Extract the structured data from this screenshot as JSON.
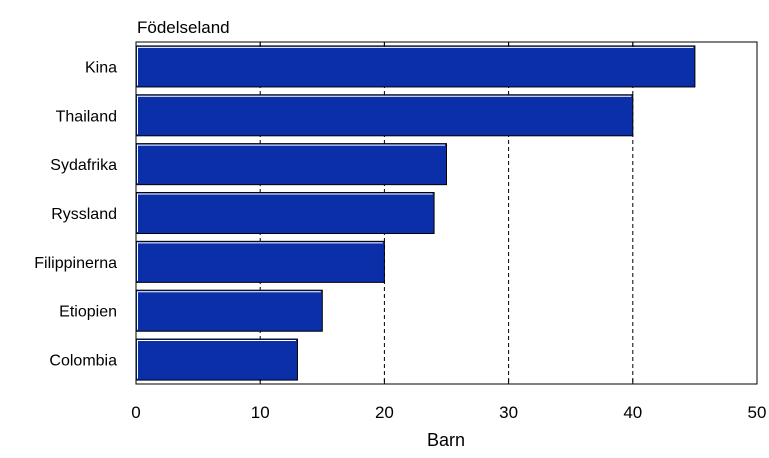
{
  "chart_data": {
    "type": "bar",
    "orientation": "horizontal",
    "title": "Födelseland",
    "xlabel": "Barn",
    "ylabel": "",
    "categories": [
      "Kina",
      "Thailand",
      "Sydafrika",
      "Ryssland",
      "Filippinerna",
      "Etiopien",
      "Colombia"
    ],
    "values": [
      45,
      40,
      25,
      24,
      20,
      15,
      13
    ],
    "xlim": [
      0,
      50
    ],
    "xticks": [
      "0",
      "10",
      "20",
      "30",
      "40",
      "50"
    ],
    "grid": "vertical-dashed",
    "bar_color": "#0a2fa8",
    "legend": "none"
  }
}
